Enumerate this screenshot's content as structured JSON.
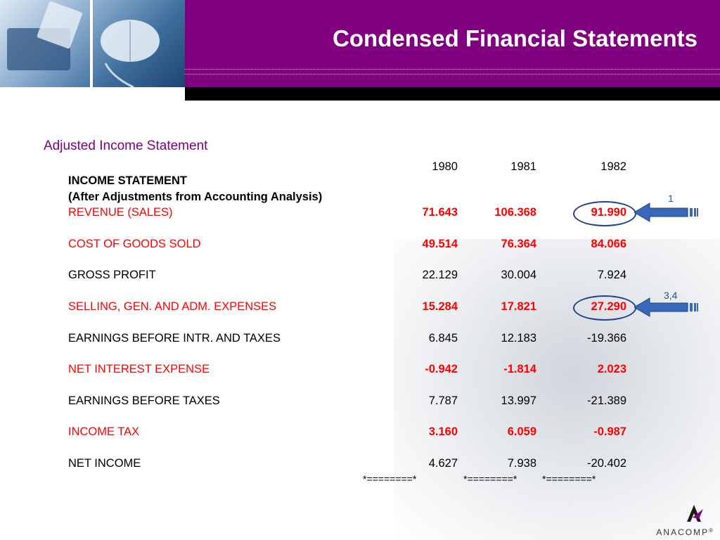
{
  "header": {
    "title": "Condensed Financial Statements"
  },
  "section": {
    "subtitle": "Adjusted Income Statement"
  },
  "table": {
    "heading": "INCOME STATEMENT",
    "subheading": "(After Adjustments from Accounting Analysis)",
    "years": [
      "1980",
      "1981",
      "1982"
    ],
    "rows": [
      {
        "label": "REVENUE (SALES)",
        "values": [
          "71.643",
          "106.368",
          "91.990"
        ],
        "highlight": true
      },
      {
        "label": "COST OF GOODS SOLD",
        "values": [
          "49.514",
          "76.364",
          "84.066"
        ],
        "highlight": true
      },
      {
        "label": "GROSS PROFIT",
        "values": [
          "22.129",
          "30.004",
          "7.924"
        ],
        "highlight": false
      },
      {
        "label": "SELLING, GEN. AND ADM. EXPENSES",
        "values": [
          "15.284",
          "17.821",
          "27.290"
        ],
        "highlight": true
      },
      {
        "label": "EARNINGS BEFORE INTR. AND TAXES",
        "values": [
          "6.845",
          "12.183",
          "-19.366"
        ],
        "highlight": false
      },
      {
        "label": "NET INTEREST EXPENSE",
        "values": [
          "-0.942",
          "-1.814",
          "2.023"
        ],
        "highlight": true
      },
      {
        "label": "EARNINGS BEFORE TAXES",
        "values": [
          "7.787",
          "13.997",
          "-21.389"
        ],
        "highlight": false
      },
      {
        "label": "INCOME TAX",
        "values": [
          "3.160",
          "6.059",
          "-0.987"
        ],
        "highlight": true
      },
      {
        "label": "NET INCOME",
        "values": [
          "4.627",
          "7.938",
          "-20.402"
        ],
        "highlight": false
      }
    ],
    "separators": [
      "*========*",
      "*========*",
      "*========*"
    ]
  },
  "callouts": [
    {
      "label": "1"
    },
    {
      "label": "3,4"
    }
  ],
  "logo": {
    "text": "ANACOMP",
    "suffix": "®"
  },
  "colors": {
    "header": "#800080",
    "highlight": "#ff0000",
    "accent": "#1f4fa8"
  }
}
